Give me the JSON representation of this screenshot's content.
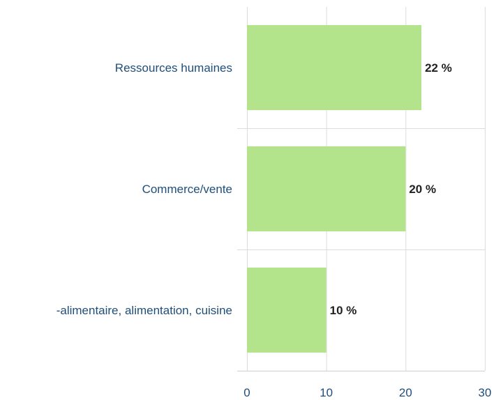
{
  "chart_data": {
    "type": "bar",
    "orientation": "horizontal",
    "categories": [
      "Ressources humaines",
      "Commerce/vente",
      "Agro-alimentaire, alimentation, cuisine"
    ],
    "category_labels_shown": [
      "Ressources humaines",
      "Commerce/vente",
      "-alimentaire, alimentation, cuisine"
    ],
    "values": [
      22,
      20,
      10
    ],
    "value_labels": [
      "22 %",
      "20 %",
      "10 %"
    ],
    "xlim": [
      0,
      30
    ],
    "x_ticks": [
      "0",
      "10",
      "20",
      "30"
    ],
    "grid": true,
    "bar_color": "#b3e38a",
    "label_color": "#1f4e79"
  }
}
